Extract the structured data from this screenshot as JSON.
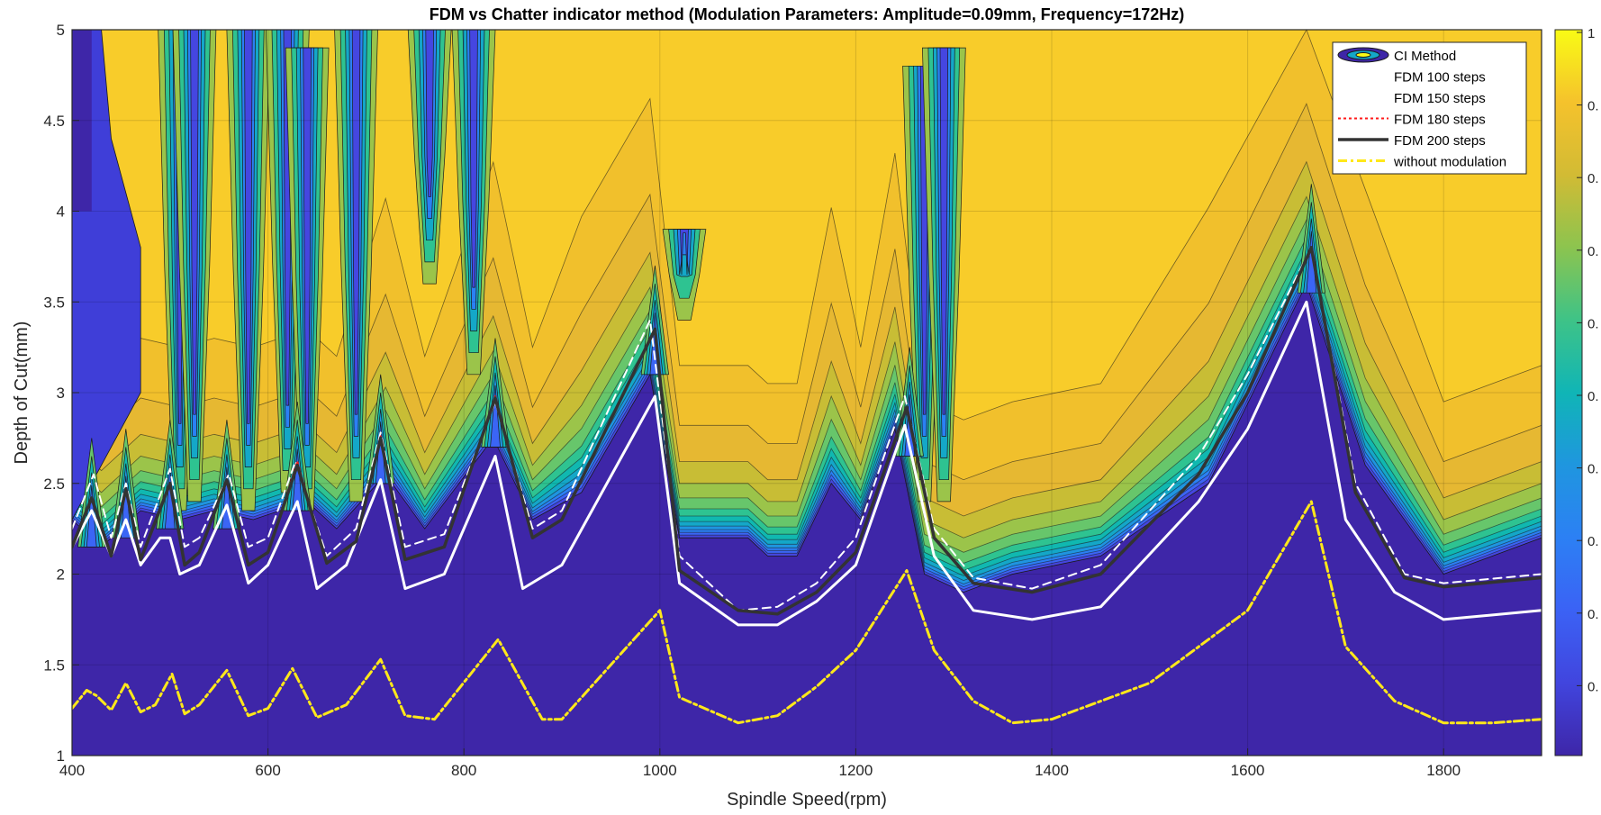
{
  "chart_data": {
    "type": "contour",
    "title": "FDM vs Chatter indicator method (Modulation Parameters: Amplitude=0.09mm, Frequency=172Hz)",
    "xlabel": "Spindle Speed(rpm)",
    "ylabel": "Depth of Cut(mm)",
    "xlim": [
      400,
      1900
    ],
    "ylim": [
      1,
      5
    ],
    "xticks": [
      400,
      600,
      800,
      1000,
      1200,
      1400,
      1600,
      1800
    ],
    "yticks": [
      1,
      1.5,
      2,
      2.5,
      3,
      3.5,
      4,
      4.5,
      5
    ],
    "grid": true,
    "legend_position": "top-right",
    "colorbar": {
      "range": [
        0,
        1
      ],
      "ticks": [
        "1",
        "0.",
        "0.",
        "0.",
        "0.",
        "0.",
        "0.",
        "0.",
        "0.",
        "0."
      ]
    },
    "colors": {
      "stable": "#3e26a8",
      "chatter": "#f8cc2a",
      "contour_levels": [
        "#3e26a8",
        "#422ec4",
        "#4546e0",
        "#3b65f5",
        "#2b80f4",
        "#1f95e0",
        "#14a7c8",
        "#10b8b0",
        "#2ec391",
        "#67c66b",
        "#9bc44a",
        "#c8bd35",
        "#e6b832",
        "#f1c02c",
        "#f8cc2a"
      ]
    },
    "contour_regions": {
      "chatter_onset_boundary": [
        [
          400,
          2.3
        ],
        [
          430,
          2.15
        ],
        [
          470,
          2.35
        ],
        [
          510,
          2.3
        ],
        [
          545,
          2.35
        ],
        [
          585,
          2.3
        ],
        [
          640,
          2.4
        ],
        [
          670,
          2.25
        ],
        [
          720,
          2.55
        ],
        [
          760,
          2.25
        ],
        [
          830,
          2.75
        ],
        [
          870,
          2.3
        ],
        [
          920,
          2.45
        ],
        [
          990,
          3.1
        ],
        [
          1020,
          2.2
        ],
        [
          1090,
          2.2
        ],
        [
          1110,
          2.1
        ],
        [
          1140,
          2.1
        ],
        [
          1175,
          2.5
        ],
        [
          1205,
          2.3
        ],
        [
          1240,
          2.8
        ],
        [
          1270,
          2.0
        ],
        [
          1310,
          1.9
        ],
        [
          1360,
          2.0
        ],
        [
          1450,
          2.1
        ],
        [
          1560,
          2.5
        ],
        [
          1660,
          3.6
        ],
        [
          1720,
          2.6
        ],
        [
          1800,
          2.0
        ],
        [
          1850,
          2.1
        ],
        [
          1900,
          2.2
        ]
      ],
      "lobe_peaks": [
        [
          420,
          2.4
        ],
        [
          455,
          2.45
        ],
        [
          500,
          2.5
        ],
        [
          558,
          2.5
        ],
        [
          630,
          2.6
        ],
        [
          715,
          2.75
        ],
        [
          832,
          2.95
        ],
        [
          995,
          3.35
        ],
        [
          1255,
          2.9
        ],
        [
          1665,
          3.8
        ]
      ],
      "notes_inner_channels_x": [
        510,
        525,
        580,
        620,
        640,
        690,
        765,
        810,
        1025,
        1270,
        1290
      ]
    },
    "series": [
      {
        "name": "CI Method",
        "style": "filled-contour"
      },
      {
        "name": "FDM 100 steps",
        "style": "solid",
        "color": "#ffffff",
        "x": [
          400,
          420,
          440,
          455,
          470,
          490,
          500,
          510,
          530,
          558,
          580,
          600,
          630,
          650,
          680,
          715,
          740,
          780,
          832,
          860,
          900,
          995,
          1020,
          1080,
          1120,
          1160,
          1200,
          1250,
          1280,
          1320,
          1380,
          1450,
          1550,
          1600,
          1660,
          1700,
          1750,
          1800,
          1900
        ],
        "y": [
          2.15,
          2.35,
          2.1,
          2.3,
          2.05,
          2.2,
          2.2,
          2.0,
          2.05,
          2.38,
          1.95,
          2.05,
          2.4,
          1.92,
          2.05,
          2.52,
          1.92,
          2.0,
          2.65,
          1.92,
          2.05,
          2.98,
          1.95,
          1.72,
          1.72,
          1.85,
          2.05,
          2.82,
          2.1,
          1.8,
          1.75,
          1.82,
          2.4,
          2.8,
          3.5,
          2.3,
          1.9,
          1.75,
          1.8
        ]
      },
      {
        "name": "FDM 150 steps",
        "style": "dashed",
        "color": "#ffffff",
        "x": [
          400,
          422,
          440,
          455,
          470,
          500,
          515,
          530,
          560,
          580,
          600,
          628,
          660,
          690,
          715,
          740,
          780,
          832,
          870,
          900,
          990,
          1020,
          1080,
          1120,
          1160,
          1200,
          1250,
          1280,
          1320,
          1380,
          1450,
          1550,
          1600,
          1665,
          1710,
          1760,
          1800,
          1900
        ],
        "y": [
          2.25,
          2.55,
          2.2,
          2.5,
          2.15,
          2.58,
          2.15,
          2.2,
          2.55,
          2.15,
          2.2,
          2.62,
          2.1,
          2.25,
          2.78,
          2.15,
          2.22,
          2.95,
          2.25,
          2.35,
          3.4,
          2.1,
          1.8,
          1.82,
          1.95,
          2.2,
          2.98,
          2.25,
          1.98,
          1.92,
          2.05,
          2.65,
          3.1,
          3.8,
          2.5,
          2.0,
          1.95,
          2.0
        ]
      },
      {
        "name": "FDM 180 steps",
        "style": "dotted",
        "color": "#ff1a1a",
        "x": [
          400,
          420,
          440,
          455,
          470,
          500,
          515,
          530,
          558,
          580,
          600,
          630,
          660,
          690,
          715,
          740,
          780,
          832,
          870,
          900,
          995,
          1020,
          1080,
          1120,
          1160,
          1200,
          1252,
          1280,
          1320,
          1380,
          1450,
          1550,
          1600,
          1665,
          1710,
          1760,
          1800,
          1900
        ],
        "y": [
          2.15,
          2.42,
          2.1,
          2.47,
          2.08,
          2.5,
          2.05,
          2.12,
          2.52,
          2.05,
          2.12,
          2.62,
          2.06,
          2.18,
          2.76,
          2.08,
          2.15,
          2.98,
          2.2,
          2.3,
          3.35,
          2.02,
          1.8,
          1.78,
          1.9,
          2.12,
          2.92,
          2.2,
          1.95,
          1.9,
          2.0,
          2.55,
          3.0,
          3.8,
          2.45,
          1.98,
          1.93,
          1.98
        ]
      },
      {
        "name": "FDM 200 steps",
        "style": "solid-thick",
        "color": "#333333",
        "x": [
          400,
          420,
          440,
          455,
          470,
          500,
          515,
          530,
          558,
          580,
          600,
          630,
          660,
          690,
          715,
          740,
          780,
          832,
          870,
          900,
          995,
          1020,
          1080,
          1120,
          1160,
          1200,
          1252,
          1280,
          1320,
          1380,
          1450,
          1550,
          1600,
          1665,
          1710,
          1760,
          1800,
          1900
        ],
        "y": [
          2.15,
          2.42,
          2.1,
          2.47,
          2.08,
          2.5,
          2.05,
          2.12,
          2.52,
          2.05,
          2.12,
          2.6,
          2.06,
          2.18,
          2.75,
          2.08,
          2.15,
          2.97,
          2.2,
          2.3,
          3.35,
          2.02,
          1.8,
          1.78,
          1.9,
          2.12,
          2.92,
          2.2,
          1.95,
          1.9,
          2.0,
          2.55,
          3.0,
          3.8,
          2.45,
          1.98,
          1.93,
          1.98
        ]
      },
      {
        "name": "without modulation",
        "style": "dashdot",
        "color": "#ffe81a",
        "x": [
          400,
          415,
          425,
          440,
          455,
          470,
          485,
          502,
          515,
          530,
          558,
          580,
          600,
          625,
          650,
          680,
          715,
          740,
          770,
          835,
          880,
          900,
          1000,
          1020,
          1080,
          1120,
          1160,
          1200,
          1252,
          1280,
          1320,
          1360,
          1400,
          1500,
          1600,
          1665,
          1700,
          1750,
          1800,
          1850,
          1900
        ],
        "y": [
          1.26,
          1.36,
          1.33,
          1.25,
          1.4,
          1.24,
          1.28,
          1.45,
          1.23,
          1.28,
          1.47,
          1.22,
          1.26,
          1.48,
          1.21,
          1.28,
          1.53,
          1.22,
          1.2,
          1.64,
          1.2,
          1.2,
          1.8,
          1.32,
          1.18,
          1.22,
          1.38,
          1.58,
          2.02,
          1.58,
          1.3,
          1.18,
          1.2,
          1.4,
          1.8,
          2.4,
          1.6,
          1.3,
          1.18,
          1.18,
          1.2
        ]
      }
    ]
  }
}
